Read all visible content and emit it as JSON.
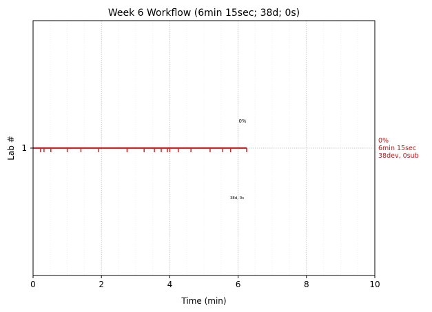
{
  "chart_data": {
    "type": "line",
    "title": "Week 6 Workflow (6min 15sec; 38d; 0s)",
    "xlabel": "Time (min)",
    "ylabel": "Lab #",
    "xlim": [
      0,
      10
    ],
    "x_ticks": [
      0,
      2,
      4,
      6,
      8,
      10
    ],
    "x_minor_step": 0.5,
    "y_ticks": [
      {
        "value": 1,
        "label": "1"
      }
    ],
    "grid": true,
    "series": [
      {
        "lab": 1,
        "start": 0,
        "end": 6.25,
        "event_markers": [
          0.22,
          0.32,
          0.52,
          1.0,
          1.4,
          1.92,
          2.75,
          3.25,
          3.55,
          3.75,
          3.93,
          4.0,
          4.25,
          4.62,
          5.18,
          5.55,
          5.78,
          6.25
        ],
        "color": "#c62828",
        "annotation_above": "0%",
        "annotation_below": "38d, 0s",
        "right_labels": [
          "0%",
          "6min 15sec",
          "38dev, 0sub"
        ]
      }
    ]
  }
}
